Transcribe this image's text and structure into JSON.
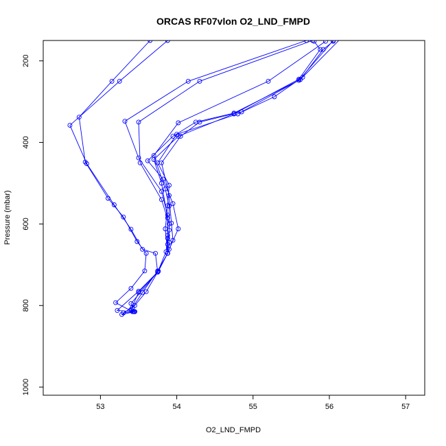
{
  "chart_data": {
    "type": "line",
    "title": "ORCAS RF07vlon O2_LND_FMPD",
    "xlabel": "O2_LND_FMPD",
    "ylabel": "Pressure (mbar)",
    "xlim": [
      52.25,
      57.25
    ],
    "ylim": [
      1020,
      150
    ],
    "y_inverted": true,
    "xticks": [
      53,
      54,
      55,
      56,
      57
    ],
    "yticks": [
      200,
      400,
      600,
      800,
      1000
    ],
    "grid": false,
    "marker": "open-circle",
    "color": "#0000ff",
    "series": [
      {
        "points": [
          [
            53.65,
            150
          ],
          [
            53.15,
            250
          ],
          [
            52.72,
            338
          ],
          [
            52.8,
            448
          ],
          [
            53.1,
            537
          ],
          [
            53.3,
            583
          ],
          [
            53.48,
            643
          ],
          [
            53.6,
            672
          ],
          [
            53.58,
            715
          ],
          [
            53.4,
            758
          ],
          [
            53.2,
            793
          ],
          [
            53.42,
            815
          ]
        ]
      },
      {
        "points": [
          [
            53.88,
            150
          ],
          [
            53.25,
            250
          ],
          [
            52.6,
            358
          ],
          [
            52.82,
            452
          ],
          [
            53.18,
            553
          ],
          [
            53.4,
            613
          ],
          [
            53.55,
            662
          ],
          [
            53.72,
            672
          ],
          [
            53.75,
            718
          ],
          [
            53.5,
            765
          ],
          [
            53.22,
            812
          ],
          [
            53.43,
            815
          ]
        ]
      },
      {
        "points": [
          [
            55.7,
            150
          ],
          [
            54.15,
            250
          ],
          [
            53.32,
            348
          ],
          [
            53.5,
            438
          ],
          [
            53.8,
            520
          ],
          [
            53.88,
            578
          ],
          [
            53.88,
            628
          ],
          [
            53.86,
            668
          ],
          [
            53.75,
            718
          ],
          [
            53.6,
            766
          ],
          [
            53.45,
            800
          ],
          [
            53.28,
            822
          ],
          [
            53.45,
            815
          ]
        ]
      },
      {
        "points": [
          [
            55.78,
            150
          ],
          [
            54.3,
            250
          ],
          [
            53.5,
            350
          ],
          [
            53.52,
            450
          ],
          [
            53.8,
            540
          ],
          [
            53.9,
            600
          ],
          [
            53.9,
            645
          ],
          [
            53.88,
            672
          ]
        ]
      },
      {
        "points": [
          [
            55.95,
            152
          ],
          [
            55.2,
            250
          ],
          [
            54.02,
            352
          ],
          [
            53.7,
            432
          ],
          [
            53.85,
            514
          ],
          [
            53.9,
            556
          ],
          [
            53.9,
            615
          ],
          [
            53.88,
            650
          ],
          [
            53.88,
            672
          ],
          [
            53.75,
            715
          ],
          [
            53.55,
            768
          ],
          [
            53.42,
            805
          ],
          [
            53.3,
            818
          ],
          [
            53.45,
            815
          ]
        ]
      },
      {
        "points": [
          [
            56.05,
            150
          ],
          [
            55.6,
            248
          ],
          [
            54.85,
            325
          ],
          [
            54.3,
            350
          ],
          [
            54.05,
            385
          ],
          [
            53.8,
            450
          ],
          [
            53.9,
            530
          ],
          [
            53.93,
            598
          ],
          [
            53.95,
            640
          ],
          [
            53.88,
            672
          ]
        ]
      },
      {
        "points": [
          [
            56.15,
            145
          ],
          [
            55.65,
            240
          ],
          [
            55.28,
            288
          ],
          [
            54.8,
            330
          ],
          [
            54.0,
            380
          ],
          [
            53.75,
            450
          ],
          [
            53.9,
            505
          ],
          [
            53.88,
            555
          ],
          [
            53.85,
            612
          ],
          [
            53.88,
            672
          ],
          [
            53.76,
            716
          ],
          [
            53.5,
            768
          ],
          [
            53.4,
            810
          ],
          [
            53.45,
            815
          ]
        ]
      },
      {
        "points": [
          [
            56.05,
            152
          ],
          [
            55.92,
            172
          ],
          [
            55.62,
            246
          ],
          [
            54.75,
            328
          ],
          [
            54.25,
            350
          ],
          [
            53.95,
            385
          ],
          [
            53.62,
            445
          ],
          [
            53.82,
            490
          ],
          [
            53.95,
            550
          ],
          [
            54.02,
            612
          ],
          [
            53.9,
            662
          ],
          [
            53.88,
            672
          ],
          [
            53.75,
            718
          ],
          [
            53.4,
            795
          ],
          [
            53.44,
            815
          ]
        ]
      },
      {
        "points": [
          [
            55.8,
            152
          ],
          [
            55.88,
            172
          ],
          [
            55.6,
            245
          ],
          [
            54.75,
            330
          ],
          [
            54.02,
            385
          ],
          [
            53.7,
            442
          ],
          [
            53.8,
            500
          ],
          [
            53.88,
            585
          ],
          [
            53.88,
            635
          ],
          [
            53.88,
            672
          ]
        ]
      }
    ]
  }
}
